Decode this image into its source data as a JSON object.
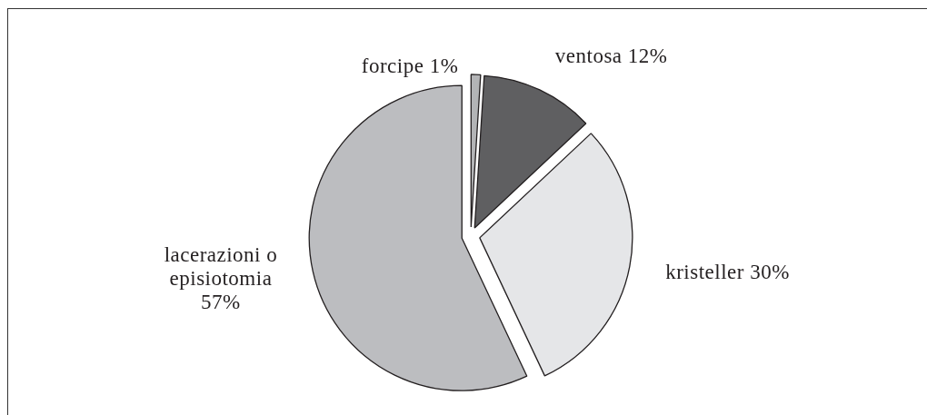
{
  "chart_data": {
    "type": "pie",
    "categories": [
      "forcipe",
      "ventosa",
      "kristeller",
      "lacerazioni o episiotomia"
    ],
    "values": [
      1,
      12,
      30,
      57
    ],
    "colors": [
      "#b3b4b6",
      "#5f5f61",
      "#e5e6e8",
      "#bcbdc0"
    ],
    "value_labels": [
      "1%",
      "12%",
      "30%",
      "57%"
    ]
  }
}
